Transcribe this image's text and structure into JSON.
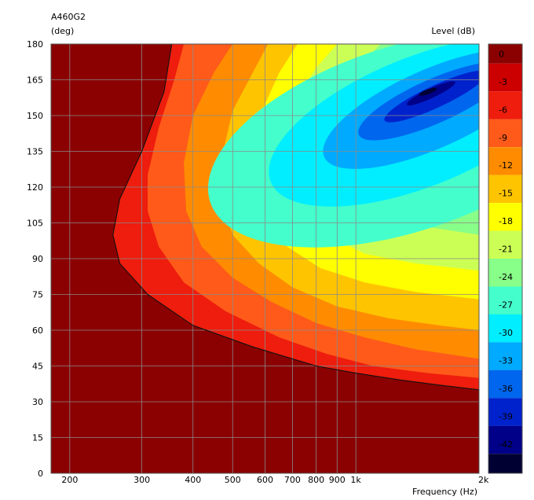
{
  "chart_data": {
    "type": "heatmap",
    "title": "A460G2",
    "ylabel": "(deg)",
    "xlabel": "Frequency  (Hz)",
    "colorbar_label": "Level  (dB)",
    "x_scale": "log",
    "xlim": [
      180,
      2000
    ],
    "ylim": [
      0,
      180
    ],
    "x_ticks": [
      {
        "value": 200,
        "label": "200"
      },
      {
        "value": 300,
        "label": "300"
      },
      {
        "value": 400,
        "label": "400"
      },
      {
        "value": 500,
        "label": "500"
      },
      {
        "value": 600,
        "label": "600"
      },
      {
        "value": 700,
        "label": "700"
      },
      {
        "value": 800,
        "label": "800"
      },
      {
        "value": 900,
        "label": "900"
      },
      {
        "value": 1000,
        "label": "1k"
      },
      {
        "value": 2000,
        "label": "2k"
      }
    ],
    "y_ticks": [
      0,
      15,
      30,
      45,
      60,
      75,
      90,
      105,
      120,
      135,
      150,
      165,
      180
    ],
    "grid": true,
    "colorbar": {
      "levels": [
        0,
        -3,
        -6,
        -9,
        -12,
        -15,
        -18,
        -21,
        -24,
        -27,
        -30,
        -33,
        -36,
        -39,
        -42
      ],
      "colors": [
        "#8b0000",
        "#cc0000",
        "#ee1d0d",
        "#ff5a1a",
        "#ff8c00",
        "#ffc400",
        "#ffff00",
        "#ccff55",
        "#88ff88",
        "#44ffcc",
        "#00eeff",
        "#00aaff",
        "#0066ee",
        "#0022cc",
        "#000088",
        "#000033"
      ]
    },
    "contours": [
      {
        "level": -3,
        "freq": [
          355,
          340,
          300,
          265,
          255,
          265,
          310,
          400,
          560,
          800,
          1000,
          1300,
          1600,
          2000
        ],
        "deg": [
          180,
          160,
          135,
          115,
          100,
          88,
          75,
          62,
          53,
          45,
          42,
          39,
          37,
          35
        ]
      },
      {
        "level": -6,
        "freq": [
          380,
          360,
          330,
          310,
          310,
          330,
          380,
          480,
          650,
          850,
          1100,
          1500,
          2000
        ],
        "deg": [
          180,
          165,
          145,
          125,
          110,
          95,
          80,
          68,
          57,
          50,
          45,
          42,
          40
        ]
      },
      {
        "level": -9,
        "freq": [
          500,
          450,
          400,
          380,
          385,
          420,
          500,
          620,
          800,
          1050,
          1400,
          2000
        ],
        "deg": [
          180,
          168,
          150,
          130,
          110,
          95,
          82,
          72,
          63,
          57,
          52,
          48
        ]
      },
      {
        "level": -12,
        "freq": [
          610,
          560,
          500,
          470,
          470,
          500,
          580,
          700,
          900,
          1200,
          1600,
          2000
        ],
        "deg": [
          180,
          168,
          152,
          132,
          115,
          100,
          88,
          78,
          70,
          65,
          62,
          60
        ]
      },
      {
        "level": -15,
        "freq": [
          720,
          650,
          590,
          560,
          560,
          600,
          680,
          820,
          1050,
          1400,
          2000
        ],
        "deg": [
          180,
          168,
          152,
          135,
          120,
          105,
          95,
          86,
          80,
          76,
          73
        ]
      },
      {
        "level": -18,
        "freq": [
          900,
          800,
          700,
          650,
          660,
          720,
          850,
          1050,
          1400,
          2000
        ],
        "deg": [
          180,
          170,
          155,
          138,
          123,
          110,
          100,
          92,
          88,
          85
        ]
      },
      {
        "level": -21,
        "freq": [
          1150,
          1000,
          850,
          760,
          740,
          780,
          900,
          1100,
          1400,
          2000
        ],
        "deg": [
          180,
          170,
          158,
          143,
          130,
          118,
          112,
          108,
          104,
          100
        ]
      }
    ],
    "minimum": {
      "level": -42,
      "freq": 1500,
      "deg": 160
    }
  }
}
